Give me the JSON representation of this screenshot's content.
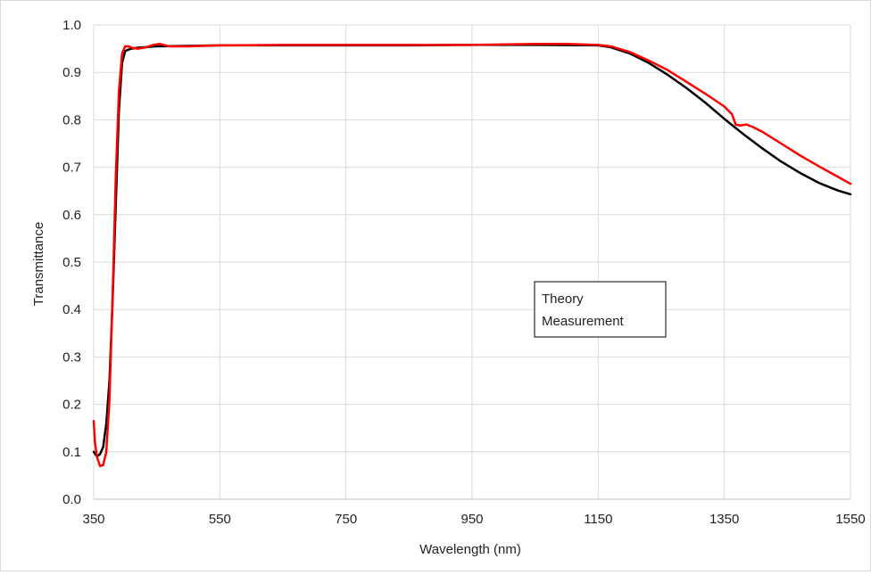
{
  "chart_data": {
    "type": "line",
    "xlabel": "Wavelength (nm)",
    "ylabel": "Transmittance",
    "xlim": [
      350,
      1550
    ],
    "ylim": [
      0.0,
      1.0
    ],
    "x_ticks": [
      350,
      550,
      750,
      950,
      1150,
      1350,
      1550
    ],
    "y_ticks": [
      "0.0",
      "0.1",
      "0.2",
      "0.3",
      "0.4",
      "0.5",
      "0.6",
      "0.7",
      "0.8",
      "0.9",
      "1.0"
    ],
    "grid": true,
    "legend_position": "center-right",
    "series": [
      {
        "name": "Theory",
        "color": "#000000",
        "x": [
          350,
          355,
          360,
          365,
          370,
          375,
          380,
          385,
          390,
          395,
          400,
          405,
          410,
          420,
          450,
          550,
          650,
          750,
          850,
          950,
          1050,
          1150,
          1170,
          1200,
          1230,
          1260,
          1290,
          1320,
          1350,
          1380,
          1410,
          1440,
          1470,
          1500,
          1530,
          1550
        ],
        "y": [
          0.1,
          0.09,
          0.095,
          0.11,
          0.16,
          0.25,
          0.42,
          0.62,
          0.82,
          0.92,
          0.945,
          0.948,
          0.95,
          0.952,
          0.955,
          0.957,
          0.957,
          0.957,
          0.957,
          0.958,
          0.958,
          0.957,
          0.953,
          0.94,
          0.92,
          0.895,
          0.867,
          0.836,
          0.802,
          0.77,
          0.74,
          0.712,
          0.688,
          0.667,
          0.651,
          0.643
        ]
      },
      {
        "name": "Measurement",
        "color": "#ff0000",
        "x": [
          350,
          352,
          355,
          360,
          365,
          370,
          375,
          380,
          385,
          390,
          395,
          400,
          405,
          410,
          420,
          430,
          445,
          455,
          470,
          500,
          550,
          650,
          750,
          850,
          950,
          1050,
          1100,
          1150,
          1170,
          1200,
          1230,
          1260,
          1290,
          1320,
          1350,
          1362,
          1368,
          1375,
          1385,
          1395,
          1410,
          1440,
          1470,
          1500,
          1530,
          1550
        ],
        "y": [
          0.165,
          0.12,
          0.09,
          0.07,
          0.072,
          0.1,
          0.21,
          0.43,
          0.68,
          0.86,
          0.94,
          0.955,
          0.955,
          0.952,
          0.95,
          0.952,
          0.958,
          0.96,
          0.955,
          0.955,
          0.957,
          0.958,
          0.958,
          0.958,
          0.958,
          0.96,
          0.96,
          0.958,
          0.955,
          0.943,
          0.925,
          0.905,
          0.88,
          0.855,
          0.828,
          0.812,
          0.79,
          0.788,
          0.79,
          0.785,
          0.775,
          0.75,
          0.725,
          0.702,
          0.68,
          0.665
        ]
      }
    ]
  }
}
